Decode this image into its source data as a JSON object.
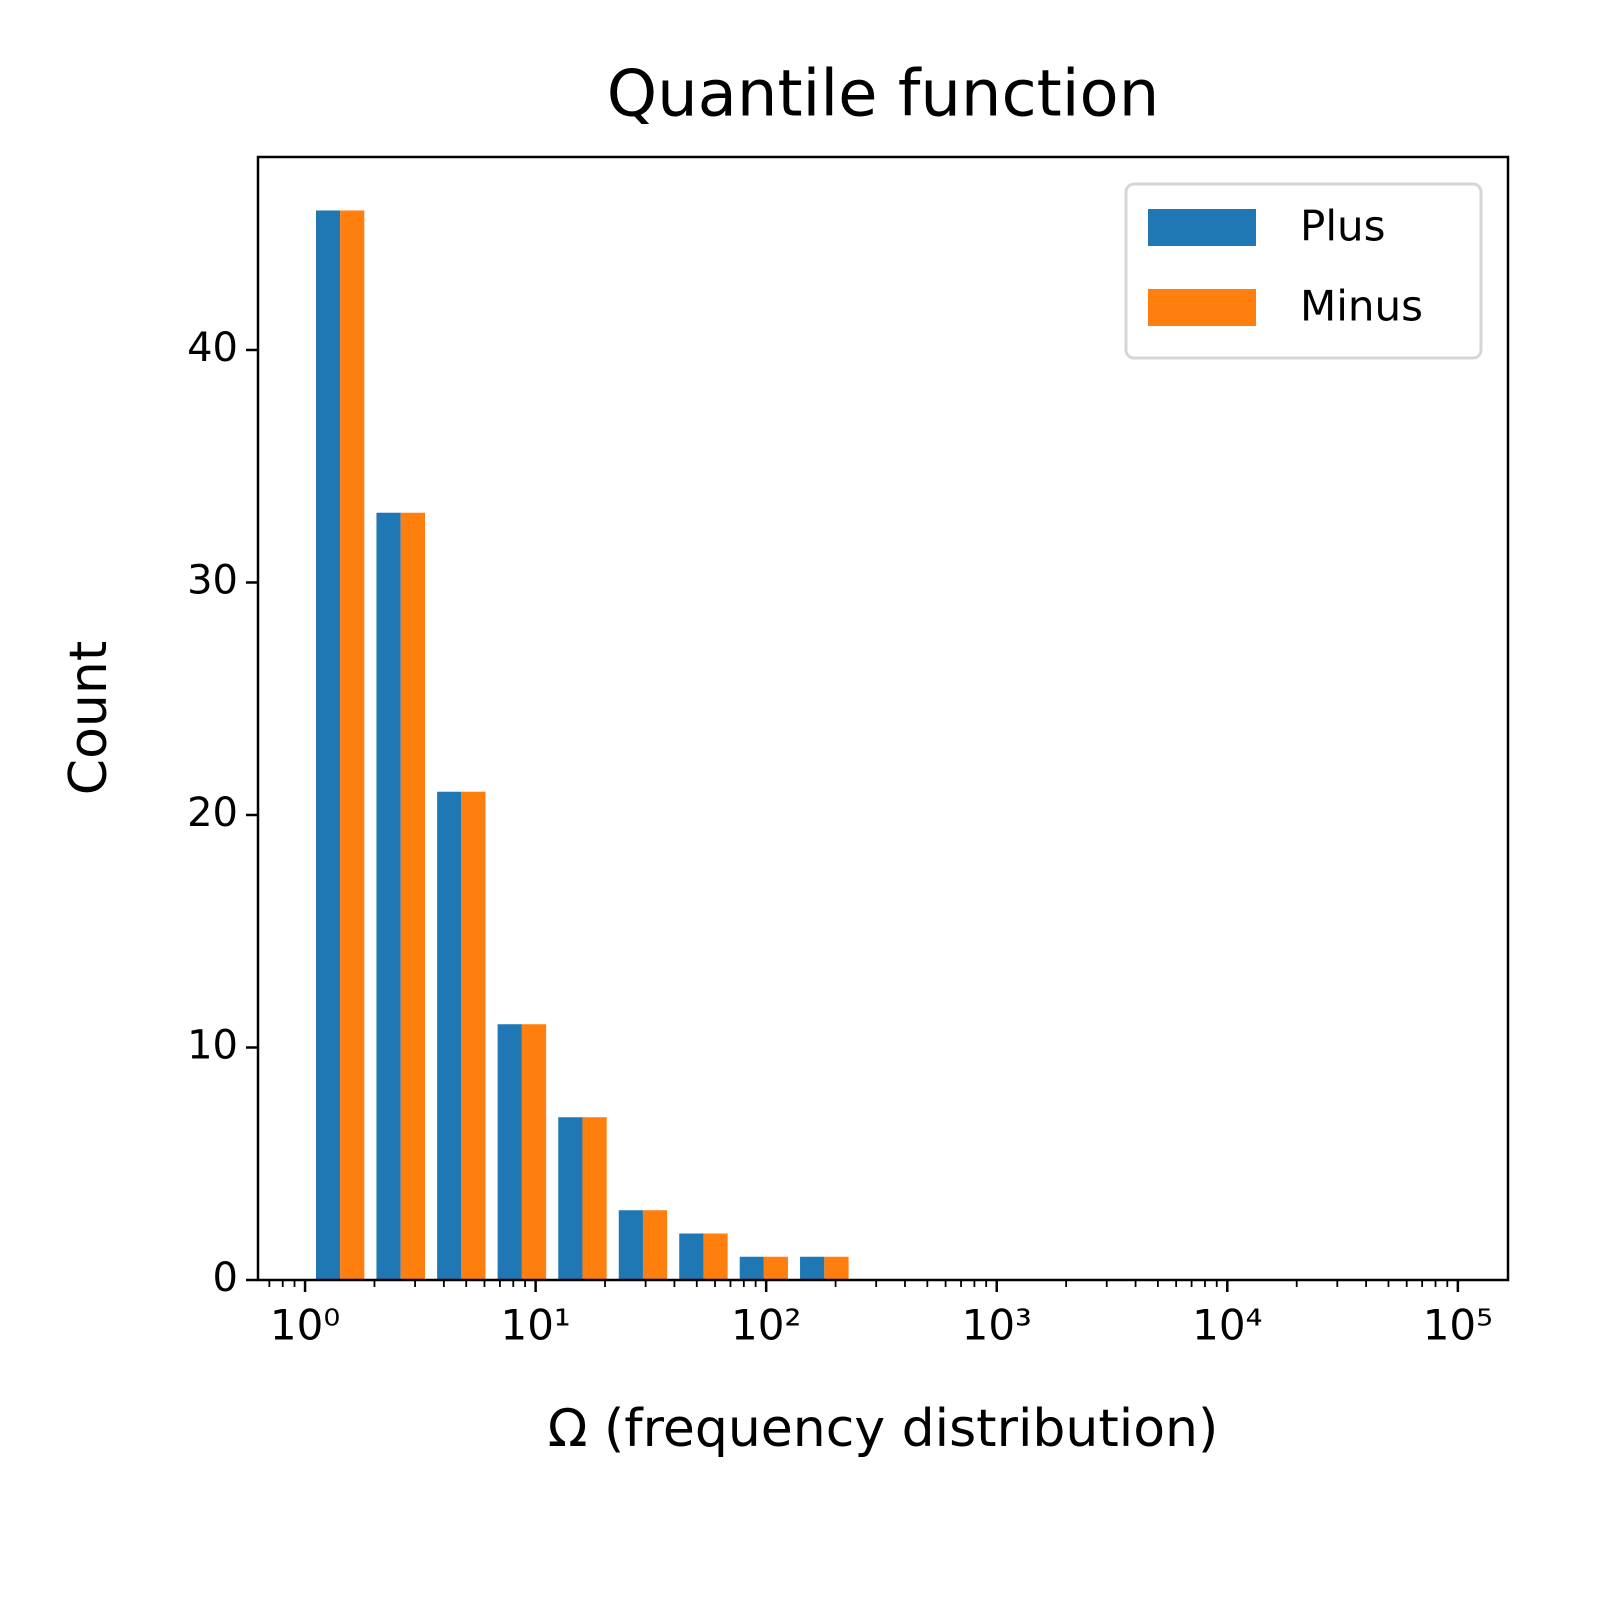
{
  "chart_data": {
    "type": "histogram",
    "title": "Quantile function",
    "xlabel": "Ω (frequency distribution)",
    "ylabel": "Count",
    "bins": [
      1.05,
      1.92,
      3.52,
      6.44,
      11.8,
      21.6,
      39.5,
      72.3,
      132,
      242
    ],
    "series": [
      {
        "name": "Plus",
        "color": "#1f77b4",
        "values": [
          46,
          33,
          21,
          11,
          7,
          3,
          2,
          1,
          1
        ]
      },
      {
        "name": "Minus",
        "color": "#ff7f0e",
        "values": [
          46,
          33,
          21,
          11,
          7,
          3,
          2,
          1,
          1
        ]
      }
    ],
    "xscale": "log",
    "xlim": [
      0.625,
      165000
    ],
    "xticks": [
      {
        "value": 1,
        "label": "10⁰"
      },
      {
        "value": 10,
        "label": "10¹"
      },
      {
        "value": 100,
        "label": "10²"
      },
      {
        "value": 1000,
        "label": "10³"
      },
      {
        "value": 10000,
        "label": "10⁴"
      },
      {
        "value": 100000,
        "label": "10⁵"
      }
    ],
    "xminorticks": [
      0.7,
      0.8,
      0.9,
      2,
      3,
      4,
      5,
      6,
      7,
      8,
      9,
      20,
      30,
      40,
      50,
      60,
      70,
      80,
      90,
      200,
      300,
      400,
      500,
      600,
      700,
      800,
      900,
      2000,
      3000,
      4000,
      5000,
      6000,
      7000,
      8000,
      9000,
      20000,
      30000,
      40000,
      50000,
      60000,
      70000,
      80000,
      90000
    ],
    "ylim": [
      0,
      48.3
    ],
    "yticks": [
      0,
      10,
      20,
      30,
      40
    ],
    "grid": false,
    "legend": "upper right"
  }
}
